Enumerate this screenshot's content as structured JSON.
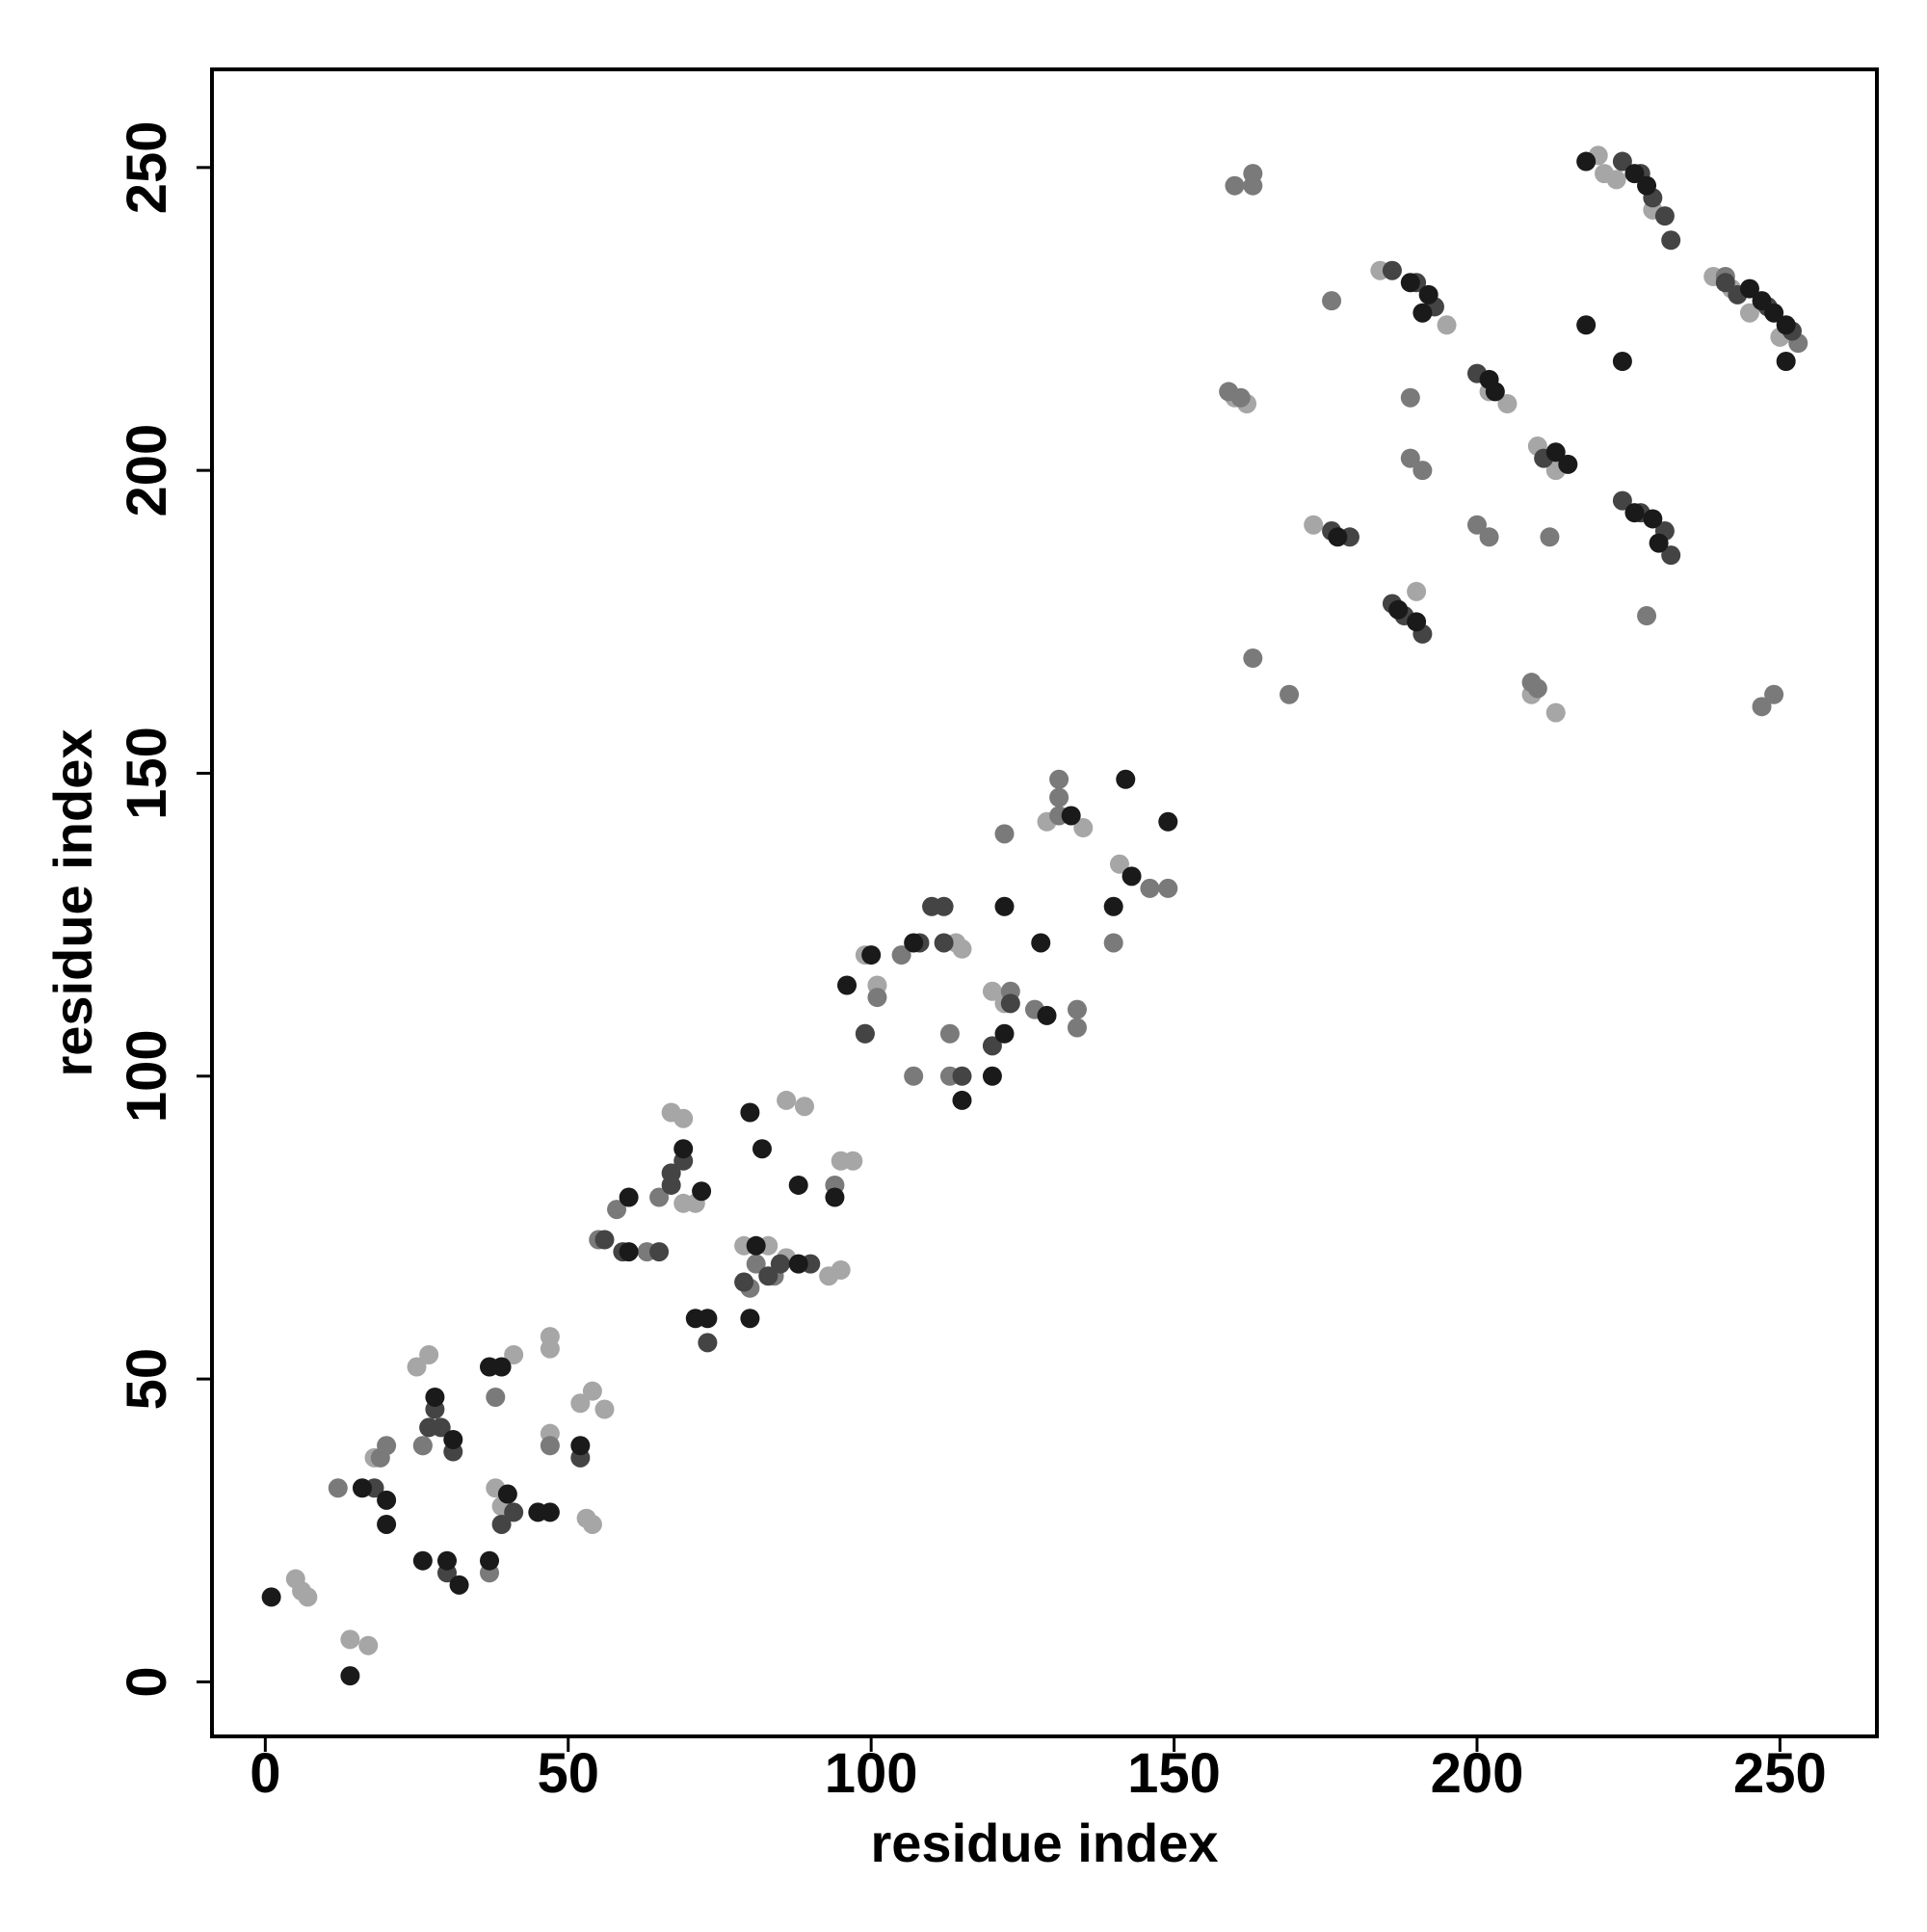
{
  "chart_data": {
    "type": "scatter",
    "xlabel": "residue index",
    "ylabel": "residue index",
    "xlim": [
      -8.8,
      266
    ],
    "ylim": [
      -9,
      266.2
    ],
    "xticks": [
      0,
      50,
      100,
      150,
      200,
      250
    ],
    "yticks": [
      0,
      50,
      100,
      150,
      200,
      250
    ],
    "series": [
      {
        "color": "#a6a6a6",
        "x": [
          5,
          6,
          7,
          14,
          17,
          18,
          25,
          27,
          26,
          38,
          39,
          41,
          47,
          47,
          47,
          52,
          54,
          56,
          53,
          54,
          67,
          69,
          69,
          71,
          79,
          83,
          86,
          86,
          89,
          93,
          95,
          95,
          97,
          99,
          101,
          114,
          115,
          120,
          122,
          129,
          135,
          141,
          190,
          220,
          221,
          223,
          229,
          239,
          242,
          245,
          250,
          160,
          162,
          202,
          205,
          210,
          213,
          173,
          209,
          213,
          184,
          195
        ],
        "y": [
          17,
          15,
          14,
          7,
          6,
          37,
          52,
          54,
          39,
          32,
          29,
          54,
          55,
          57,
          41,
          46,
          48,
          45,
          27,
          26,
          94,
          93,
          79,
          79,
          72,
          72,
          70,
          96,
          95,
          67,
          68,
          86,
          86,
          120,
          115,
          122,
          121,
          114,
          112,
          142,
          141,
          135,
          180,
          252,
          249,
          248,
          243,
          232,
          230,
          226,
          222,
          212,
          211,
          213,
          211,
          204,
          200,
          191,
          163,
          160,
          233,
          224
        ]
      },
      {
        "color": "#7a7a7a",
        "x": [
          12,
          19,
          20,
          26,
          38,
          37,
          47,
          55,
          58,
          63,
          65,
          81,
          80,
          84,
          94,
          99,
          101,
          105,
          107,
          113,
          113,
          122,
          131,
          131,
          131,
          123,
          127,
          134,
          134,
          140,
          149,
          146,
          169,
          163,
          176,
          189,
          191,
          189,
          200,
          202,
          212,
          228,
          160,
          163,
          163,
          209,
          210,
          253,
          249,
          247,
          241,
          159,
          161
        ],
        "y": [
          32,
          37,
          39,
          39,
          47,
          18,
          39,
          73,
          78,
          71,
          80,
          69,
          65,
          67,
          82,
          107,
          113,
          120,
          100,
          107,
          100,
          140,
          143,
          146,
          149,
          114,
          111,
          111,
          108,
          122,
          131,
          131,
          163,
          169,
          228,
          212,
          200,
          202,
          191,
          189,
          189,
          176,
          247,
          249,
          247,
          165,
          164,
          221,
          163,
          161,
          232,
          213,
          212
        ]
      },
      {
        "color": "#444444",
        "x": [
          18,
          28,
          27,
          29,
          31,
          39,
          41,
          30,
          52,
          59,
          56,
          69,
          67,
          67,
          65,
          79,
          83,
          85,
          90,
          73,
          99,
          108,
          110,
          112,
          112,
          115,
          120,
          123,
          224,
          227,
          229,
          231,
          232,
          186,
          190,
          193,
          200,
          211,
          224,
          227,
          231,
          232,
          186,
          188,
          191,
          176,
          179,
          241,
          243,
          248,
          252
        ],
        "y": [
          32,
          45,
          42,
          42,
          38,
          26,
          28,
          18,
          37,
          71,
          73,
          86,
          82,
          84,
          71,
          66,
          67,
          69,
          69,
          56,
          107,
          122,
          128,
          128,
          122,
          100,
          105,
          112,
          251,
          249,
          245,
          242,
          238,
          233,
          231,
          227,
          216,
          202,
          195,
          193,
          190,
          186,
          178,
          176,
          173,
          190,
          189,
          231,
          229,
          227,
          223
        ]
      },
      {
        "color": "#1a1a1a",
        "x": [
          1,
          14,
          16,
          20,
          20,
          26,
          30,
          32,
          28,
          31,
          40,
          37,
          39,
          45,
          47,
          37,
          52,
          60,
          60,
          69,
          72,
          71,
          73,
          80,
          82,
          81,
          80,
          88,
          94,
          88,
          100,
          96,
          107,
          122,
          128,
          122,
          120,
          115,
          133,
          142,
          149,
          143,
          140,
          129,
          218,
          226,
          228,
          218,
          224,
          251,
          251,
          249,
          247,
          245,
          189,
          192,
          191,
          202,
          203,
          213,
          215,
          226,
          229,
          230,
          187,
          190,
          177
        ],
        "y": [
          14,
          1,
          32,
          30,
          26,
          20,
          20,
          16,
          47,
          40,
          31,
          52,
          52,
          28,
          28,
          20,
          39,
          71,
          80,
          88,
          81,
          60,
          60,
          94,
          88,
          72,
          60,
          82,
          80,
          69,
          120,
          115,
          122,
          128,
          122,
          107,
          100,
          96,
          143,
          149,
          142,
          133,
          128,
          110,
          251,
          249,
          247,
          224,
          218,
          218,
          224,
          226,
          228,
          230,
          231,
          229,
          226,
          215,
          213,
          203,
          201,
          193,
          192,
          188,
          177,
          175,
          189
        ]
      }
    ]
  }
}
